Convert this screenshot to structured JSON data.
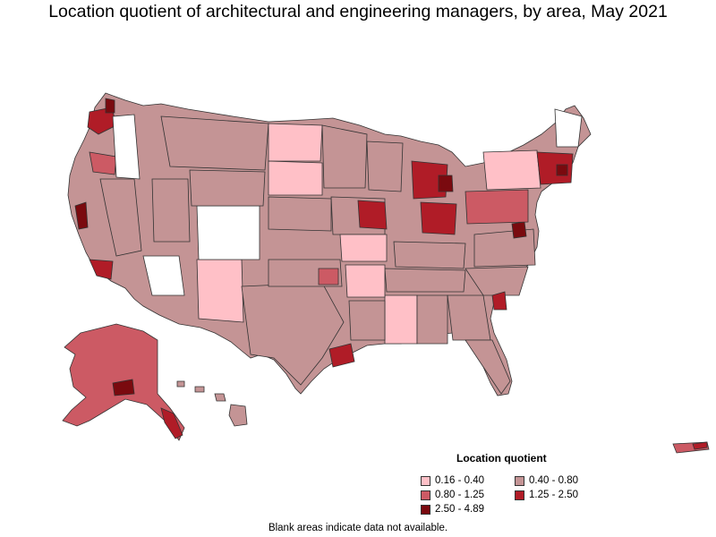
{
  "title": "Location quotient of architectural and engineering managers, by area, May 2021",
  "legend": {
    "title": "Location quotient",
    "items": [
      {
        "label": "0.16 - 0.40",
        "color": "#ffc0c7"
      },
      {
        "label": "0.40 - 0.80",
        "color": "#c49495"
      },
      {
        "label": "0.80 - 1.25",
        "color": "#cc5a64"
      },
      {
        "label": "1.25 - 2.50",
        "color": "#b01c27"
      },
      {
        "label": "2.50 - 4.89",
        "color": "#7a0a0f"
      }
    ]
  },
  "footnote": "Blank areas indicate data not available.",
  "colors": {
    "border": "#333333",
    "blank": "#ffffff"
  }
}
